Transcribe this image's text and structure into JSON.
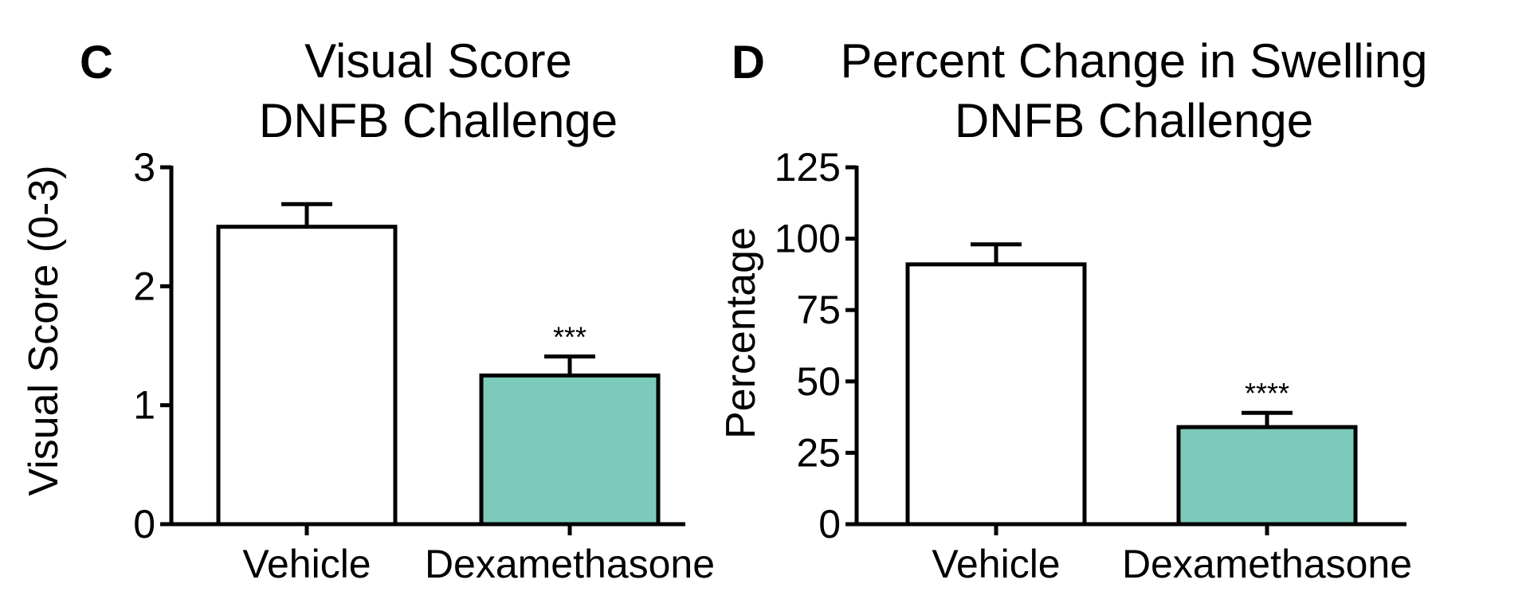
{
  "chart_data": [
    {
      "panel": "C",
      "type": "bar",
      "title_lines": [
        "Visual Score",
        "DNFB Challenge"
      ],
      "ylabel": "Visual Score (0-3)",
      "categories": [
        "Vehicle",
        "Dexamethasone"
      ],
      "values": [
        2.5,
        1.25
      ],
      "errors": [
        0.19,
        0.16
      ],
      "significance": [
        "",
        "***"
      ],
      "ylim": [
        0,
        3
      ],
      "yticks": [
        0,
        1,
        2,
        3
      ],
      "bar_colors": [
        "#ffffff",
        "#7ccbba"
      ]
    },
    {
      "panel": "D",
      "type": "bar",
      "title_lines": [
        "Percent Change in Swelling",
        "DNFB Challenge"
      ],
      "ylabel": "Percentage",
      "categories": [
        "Vehicle",
        "Dexamethasone"
      ],
      "values": [
        91,
        34
      ],
      "errors": [
        7,
        5
      ],
      "significance": [
        "",
        "****"
      ],
      "ylim": [
        0,
        125
      ],
      "yticks": [
        0,
        25,
        50,
        75,
        100,
        125
      ],
      "bar_colors": [
        "#ffffff",
        "#7ccbba"
      ]
    }
  ]
}
